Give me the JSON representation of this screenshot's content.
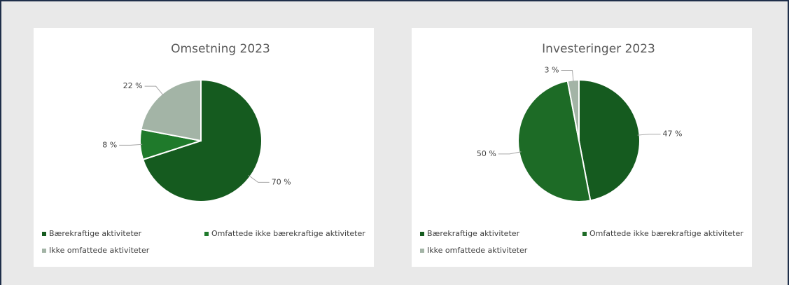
{
  "chart_data": [
    {
      "type": "pie",
      "title": "Omsetning 2023",
      "categories": [
        "Bærekraftige aktiviteter",
        "Omfattede ikke bærekraftige aktiviteter",
        "Ikke omfattede aktiviteter"
      ],
      "values": [
        70,
        8,
        22
      ],
      "value_labels": [
        "70 %",
        "8 %",
        "22 %"
      ],
      "colors": [
        "#155b1f",
        "#1f7a2b",
        "#a3b4a6"
      ]
    },
    {
      "type": "pie",
      "title": "Investeringer 2023",
      "categories": [
        "Bærekraftige aktiviteter",
        "Omfattede ikke bærekraftige aktiviteter",
        "Ikke omfattede aktiviteter"
      ],
      "values": [
        47,
        50,
        3
      ],
      "value_labels": [
        "47 %",
        "50 %",
        "3 %"
      ],
      "colors": [
        "#155b1f",
        "#1d6b26",
        "#a3b4a6"
      ]
    }
  ]
}
